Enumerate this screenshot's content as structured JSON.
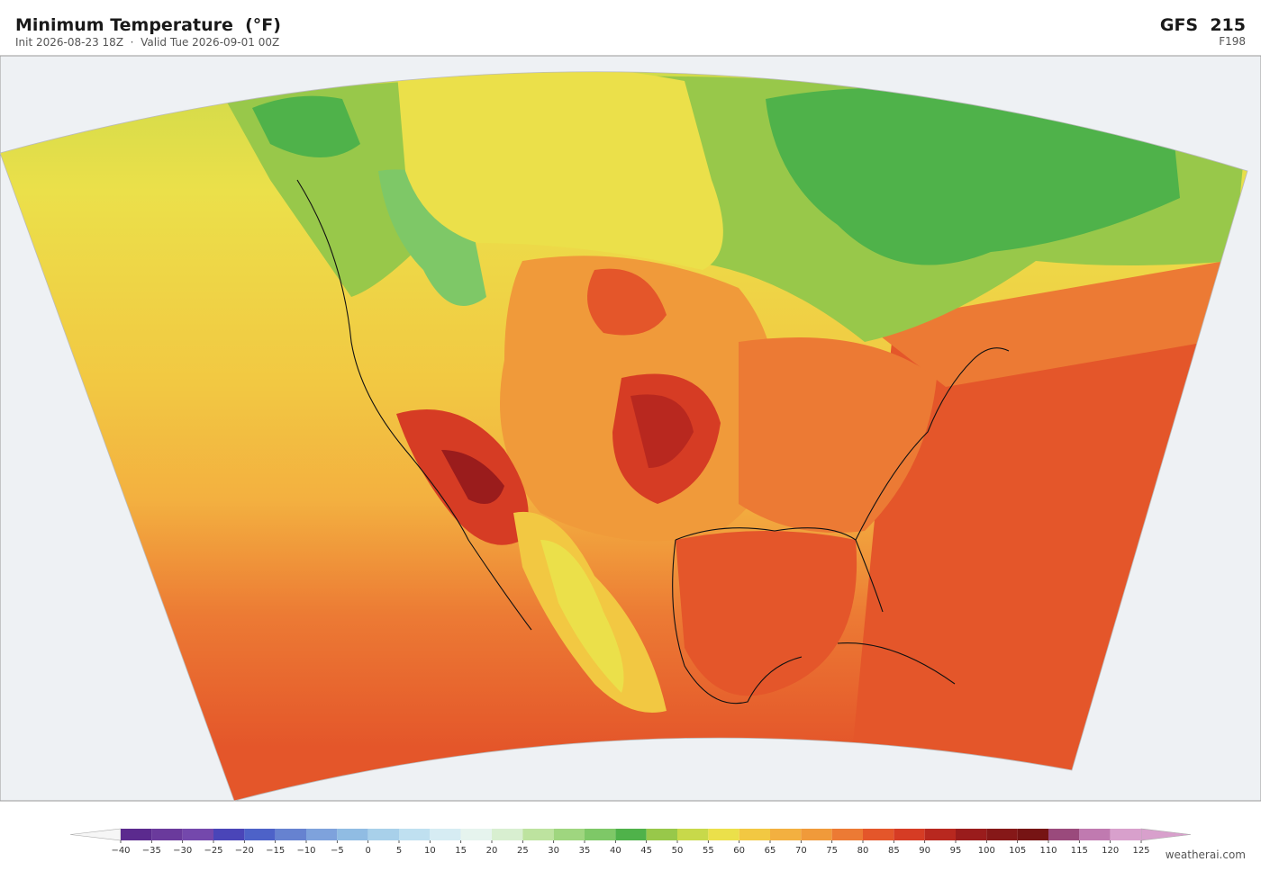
{
  "header": {
    "title": "Minimum Temperature  (°F)",
    "subtitle": "Init 2026-08-23 18Z  ·  Valid Tue 2026-09-01 00Z",
    "model": "GFS  215",
    "forecast_hour": "F198"
  },
  "colorbar": {
    "ticks": [
      {
        "value": -40,
        "label": "−40"
      },
      {
        "value": -35,
        "label": "−35"
      },
      {
        "value": -30,
        "label": "−30"
      },
      {
        "value": -25,
        "label": "−25"
      },
      {
        "value": -20,
        "label": "−20"
      },
      {
        "value": -15,
        "label": "−15"
      },
      {
        "value": -10,
        "label": "−10"
      },
      {
        "value": -5,
        "label": "−5"
      },
      0,
      5,
      10,
      15,
      20,
      25,
      30,
      35,
      40,
      45,
      50,
      55,
      60,
      65,
      70,
      75,
      80,
      85,
      90,
      95,
      100,
      105,
      110,
      115,
      120,
      125
    ],
    "colors": [
      "#5b2a8e",
      "#6a3a9c",
      "#7448ac",
      "#4a45b8",
      "#4d62c8",
      "#6682d0",
      "#7ea2dc",
      "#90bce3",
      "#a8d0ea",
      "#bfe0f0",
      "#d6ecf3",
      "#e6f4ee",
      "#d8efd0",
      "#bde39f",
      "#9fd67f",
      "#7ec867",
      "#4fb24a",
      "#98c84a",
      "#c8d94a",
      "#ebe04a",
      "#f2c842",
      "#f3b040",
      "#f09a3a",
      "#ec7a34",
      "#e4562a",
      "#d63c24",
      "#b8281f",
      "#9a1c1c",
      "#861818",
      "#761414",
      "#9a4a7c",
      "#c07ab0",
      "#d8a0cc"
    ],
    "under_color": "#f6f6f6",
    "over_color": "#d8a0cc"
  },
  "footer": {
    "credit": "weatherai.com"
  }
}
